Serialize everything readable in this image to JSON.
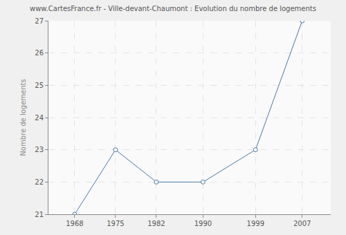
{
  "chart_data": {
    "type": "line",
    "title": "www.CartesFrance.fr - Ville-devant-Chaumont : Evolution du nombre de logements",
    "y_label": "Nombre de logements",
    "x": [
      1968,
      1975,
      1982,
      1990,
      1999,
      2007
    ],
    "values": [
      21,
      23,
      22,
      22,
      23,
      27
    ],
    "color": "#4a77a8",
    "marker": "circle",
    "xlim": [
      1963.5,
      2011.9
    ],
    "xticks": [
      1968,
      1975,
      1982,
      1990,
      1999,
      2007
    ],
    "ylim": [
      21,
      27
    ],
    "yticks": [
      21,
      22,
      23,
      24,
      25,
      26,
      27
    ],
    "grid": true
  }
}
